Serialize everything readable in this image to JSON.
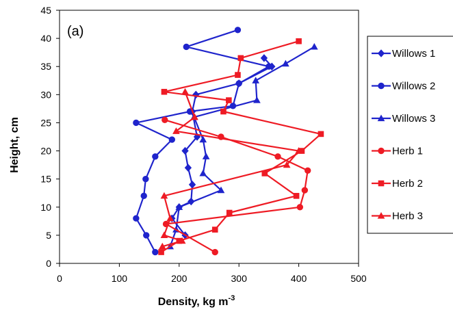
{
  "chart_data": {
    "type": "line",
    "panel_label": "(a)",
    "xlabel": "Density, kg m",
    "xlabel_superscript": "-3",
    "ylabel": "Height, cm",
    "xlim": [
      0,
      500
    ],
    "ylim": [
      0,
      45
    ],
    "xticks": [
      "0",
      "100",
      "200",
      "300",
      "400",
      "500"
    ],
    "yticks": [
      "0",
      "5",
      "10",
      "15",
      "20",
      "25",
      "30",
      "35",
      "40",
      "45"
    ],
    "grid": false,
    "legend_position": "right",
    "series": [
      {
        "name": "Willows 1",
        "color": "#1f24cc",
        "marker": "diamond",
        "points": [
          [
            210,
            5
          ],
          [
            188,
            8
          ],
          [
            200,
            10
          ],
          [
            220,
            11
          ],
          [
            222,
            14
          ],
          [
            215,
            17
          ],
          [
            210,
            20
          ],
          [
            230,
            22.5
          ],
          [
            222,
            27
          ],
          [
            228,
            30
          ],
          [
            300,
            32
          ],
          [
            355,
            35
          ],
          [
            342,
            36.5
          ]
        ]
      },
      {
        "name": "Willows 2",
        "color": "#1f24cc",
        "marker": "circle",
        "points": [
          [
            160,
            2
          ],
          [
            145,
            5
          ],
          [
            128,
            8
          ],
          [
            141,
            12
          ],
          [
            144,
            15
          ],
          [
            160,
            19
          ],
          [
            188,
            22
          ],
          [
            128,
            25
          ],
          [
            218,
            27
          ],
          [
            290,
            28
          ],
          [
            300,
            32
          ],
          [
            350,
            35
          ],
          [
            212,
            38.5
          ],
          [
            298,
            41.5
          ]
        ]
      },
      {
        "name": "Willows 3",
        "color": "#1f24cc",
        "marker": "triangle",
        "points": [
          [
            185,
            3
          ],
          [
            195,
            6
          ],
          [
            200,
            10
          ],
          [
            270,
            13
          ],
          [
            240,
            16
          ],
          [
            245,
            19
          ],
          [
            240,
            22
          ],
          [
            225,
            26
          ],
          [
            330,
            29
          ],
          [
            328,
            32.5
          ],
          [
            378,
            35.5
          ],
          [
            426,
            38.5
          ]
        ]
      },
      {
        "name": "Herb 1",
        "color": "#ee1b24",
        "marker": "circle",
        "points": [
          [
            260,
            2
          ],
          [
            178,
            7
          ],
          [
            402,
            10
          ],
          [
            410,
            13
          ],
          [
            415,
            16.5
          ],
          [
            365,
            19
          ],
          [
            270,
            22.5
          ],
          [
            176,
            25.5
          ]
        ]
      },
      {
        "name": "Herb 2",
        "color": "#ee1b24",
        "marker": "square",
        "points": [
          [
            170,
            2
          ],
          [
            200,
            4
          ],
          [
            260,
            6
          ],
          [
            284,
            9
          ],
          [
            396,
            12
          ],
          [
            343,
            16
          ],
          [
            405,
            20
          ],
          [
            437,
            23
          ],
          [
            274,
            27
          ],
          [
            283,
            29
          ],
          [
            175,
            30.5
          ],
          [
            298,
            33.5
          ],
          [
            303,
            36.5
          ],
          [
            400,
            39.5
          ]
        ]
      },
      {
        "name": "Herb 3",
        "color": "#ee1b24",
        "marker": "triangle",
        "points": [
          [
            172,
            3
          ],
          [
            205,
            4
          ],
          [
            175,
            5
          ],
          [
            185,
            8
          ],
          [
            175,
            12
          ],
          [
            380,
            17.5
          ],
          [
            400,
            20
          ],
          [
            195,
            23.5
          ],
          [
            226,
            26
          ],
          [
            210,
            30.5
          ]
        ]
      }
    ]
  }
}
